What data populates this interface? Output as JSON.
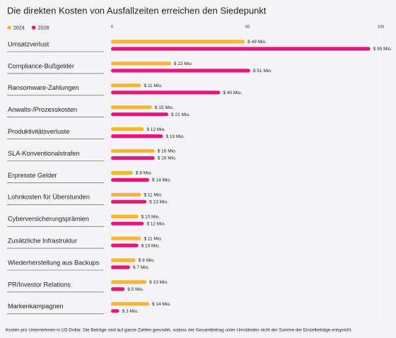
{
  "chart_data": {
    "type": "bar",
    "orientation": "horizontal",
    "title": "Die direkten Kosten von Ausfallzeiten erreichen den Siedepunkt",
    "note": "Kosten pro Unternehmen in US-Dollar. Die Beträge sind auf ganze Zahlen gerundet, sodass der Gesamtbetrag unter Umständen nicht der Summe der Einzelbeträge entspricht.",
    "categories": [
      "Umsatzverlust",
      "Compliance-Bußgelder",
      "Ransomware-Zahlungen",
      "Anwalts-/Prozesskosten",
      "Produktivitätsverluste",
      "SLA-Konventionalstrafen",
      "Erpresste Gelder",
      "Lohnkosten für Überstunden",
      "Cyberversicherungsprämien",
      "Zusätzliche Infrastruktur",
      "Wiederherstellung aus Backups",
      "PR/Investor Relations",
      "Markenkampagnen"
    ],
    "series": [
      {
        "name": "2024",
        "color": "#f6b533",
        "values": [
          49,
          22,
          11,
          15,
          12,
          16,
          8,
          11,
          10,
          11,
          9,
          13,
          14
        ],
        "value_labels": [
          "$ 49 Mio.",
          "$ 22 Mio.",
          "$ 11 Mio.",
          "$ 15 Mio.",
          "$ 12 Mio.",
          "$ 16 Mio.",
          "$ 8 Mio.",
          "$ 11 Mio.",
          "$ 10 Mio.",
          "$ 11 Mio.",
          "$ 9 Mio.",
          "$ 13 Mio.",
          "$ 14 Mio."
        ]
      },
      {
        "name": "2028",
        "color": "#e6167d",
        "values": [
          95,
          51,
          40,
          21,
          19,
          16,
          14,
          13,
          12,
          10,
          7,
          5,
          3
        ],
        "value_labels": [
          "$ 95 Mio.",
          "$ 51 Mio.",
          "$ 40 Mio.",
          "$ 21 Mio.",
          "$ 19 Mio.",
          "$ 16 Mio.",
          "$ 14 Mio.",
          "$ 13 Mio.",
          "$ 12 Mio.",
          "$ 10 Mio.",
          "$ 7 Mio.",
          "$ 5 Mio.",
          "$ 3 Mio."
        ]
      }
    ],
    "xlim": [
      0,
      100
    ],
    "xticks": [
      0,
      50,
      100
    ],
    "grid": true,
    "legend": "top-left"
  }
}
